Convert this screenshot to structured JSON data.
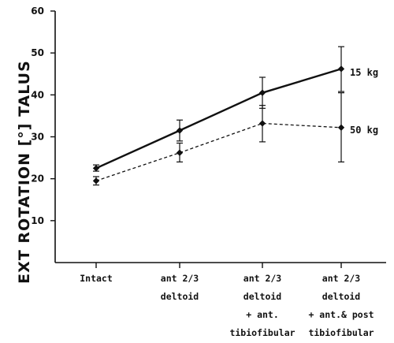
{
  "chart_data": {
    "type": "line",
    "ylabel": "EXT ROTATION [°] TALUS",
    "ylim": [
      0,
      60
    ],
    "yticks": [
      10,
      20,
      30,
      40,
      50,
      60
    ],
    "categories": [
      [
        "Intact"
      ],
      [
        "ant 2/3",
        "deltoid"
      ],
      [
        "ant 2/3",
        "deltoid",
        "+ ant.",
        "tibiofibular"
      ],
      [
        "ant 2/3",
        "deltoid",
        "+ ant.& post",
        "tibiofibular"
      ]
    ],
    "series": [
      {
        "name": "15 kg",
        "line_style": "solid",
        "values": [
          22.5,
          31.5,
          40.5,
          46.2
        ],
        "error_low": [
          21.8,
          29.0,
          36.8,
          40.8
        ],
        "error_high": [
          23.3,
          34.0,
          44.2,
          51.5
        ]
      },
      {
        "name": "50 kg",
        "line_style": "dashed",
        "values": [
          19.5,
          26.2,
          33.2,
          32.2
        ],
        "error_low": [
          18.5,
          24.0,
          28.8,
          24.0
        ],
        "error_high": [
          20.5,
          28.5,
          37.5,
          40.5
        ]
      }
    ],
    "grid": false,
    "legend": "inline labels at right end of each series"
  }
}
